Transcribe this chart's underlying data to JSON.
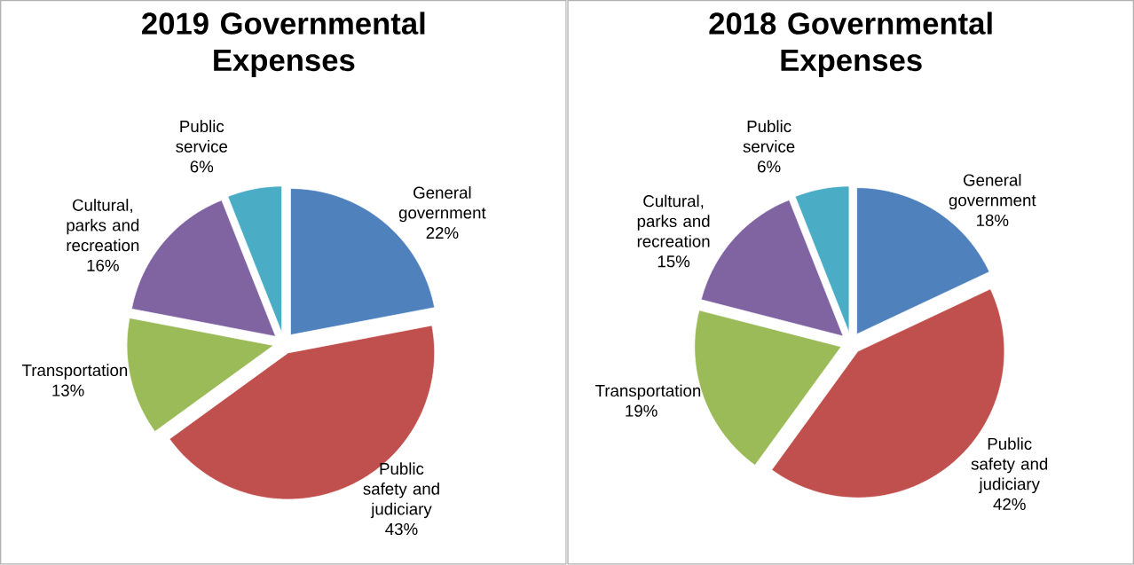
{
  "chart_data": [
    {
      "type": "pie",
      "title": "2019 Governmental Expenses",
      "categories": [
        "General government",
        "Public safety and judiciary",
        "Transportation",
        "Cultural, parks and recreation",
        "Public service"
      ],
      "values": [
        22,
        43,
        13,
        16,
        6
      ],
      "value_labels": [
        "22%",
        "43%",
        "13%",
        "16%",
        "6%"
      ],
      "colors": [
        "#4f81bd",
        "#c0504d",
        "#9bbb59",
        "#8064a2",
        "#4bacc6"
      ]
    },
    {
      "type": "pie",
      "title": "2018 Governmental Expenses",
      "categories": [
        "General government",
        "Public safety and judiciary",
        "Transportation",
        "Cultural, parks and recreation",
        "Public service"
      ],
      "values": [
        18,
        42,
        19,
        15,
        6
      ],
      "value_labels": [
        "18%",
        "42%",
        "19%",
        "15%",
        "6%"
      ],
      "colors": [
        "#4f81bd",
        "#c0504d",
        "#9bbb59",
        "#8064a2",
        "#4bacc6"
      ]
    }
  ]
}
